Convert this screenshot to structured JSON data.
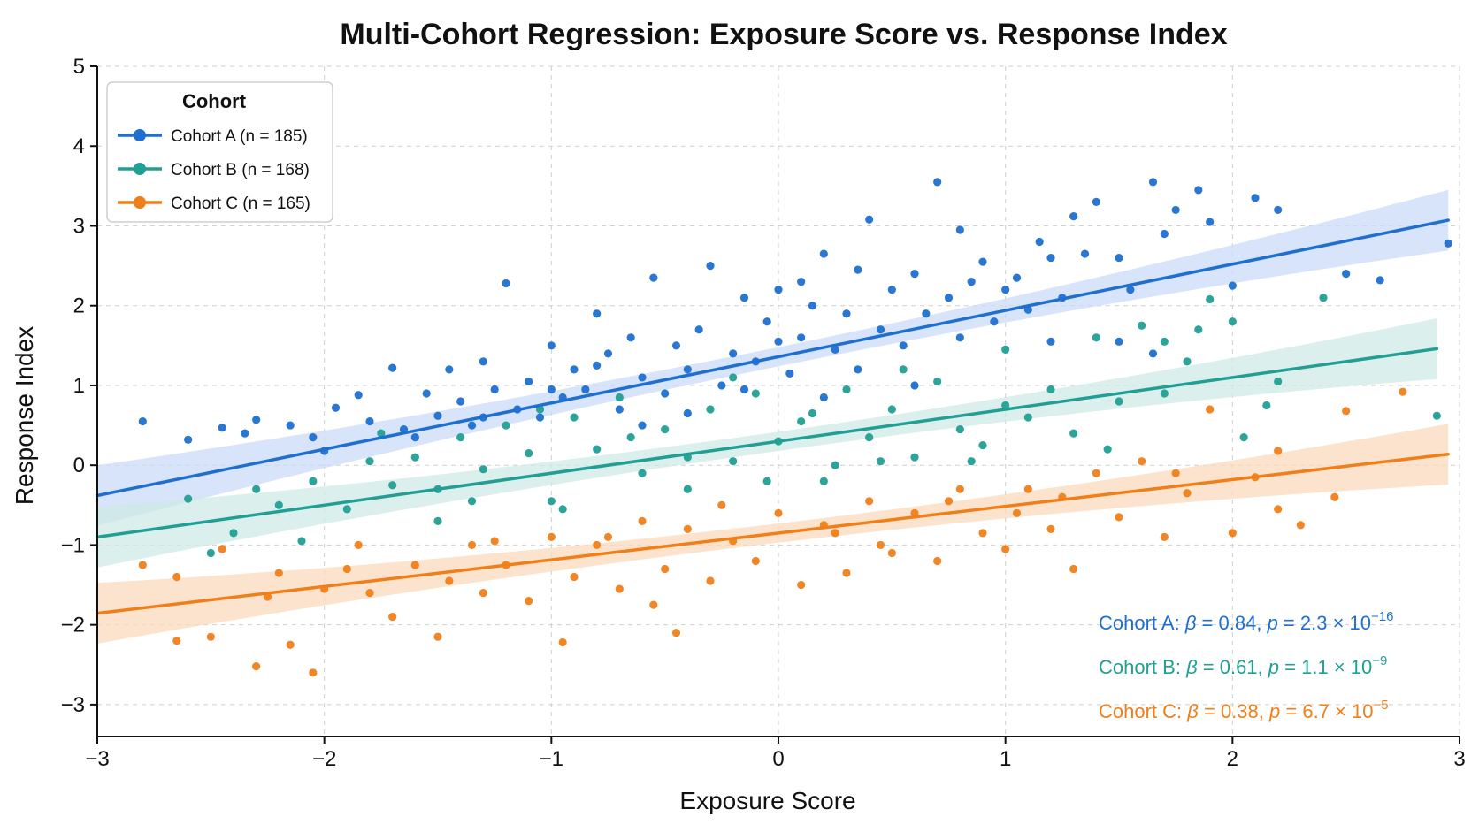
{
  "chart_data": {
    "type": "scatter",
    "title": "Multi-Cohort Regression: Exposure Score vs. Response Index",
    "xlabel": "Exposure Score",
    "ylabel": "Response Index",
    "xlim": [
      -3,
      3
    ],
    "ylim": [
      -3.4,
      5
    ],
    "xticks": [
      -3,
      -2,
      -1,
      0,
      1,
      2,
      3
    ],
    "yticks": [
      -3,
      -2,
      -1,
      0,
      1,
      2,
      3,
      4,
      5
    ],
    "xtick_labels": [
      "−3",
      "−2",
      "−1",
      "0",
      "1",
      "2",
      "3"
    ],
    "ytick_labels": [
      "−3",
      "−2",
      "−1",
      "0",
      "1",
      "2",
      "3",
      "4",
      "5"
    ],
    "grid": true,
    "legend": {
      "title": "Cohort",
      "placement": "top-left"
    },
    "series": [
      {
        "name": "Cohort A (n = 185)",
        "cohort": "Cohort A",
        "color": "#1f6fd1",
        "band_color": "#c9dbf7",
        "regression": {
          "intercept": 1.36,
          "slope": 0.58,
          "x_range": [
            -3.0,
            2.95
          ]
        },
        "stats": {
          "beta": "0.84",
          "p_mantissa": "2.3",
          "p_exp": "−16"
        },
        "points": [
          [
            -2.8,
            0.55
          ],
          [
            -2.6,
            0.32
          ],
          [
            -2.45,
            0.47
          ],
          [
            -2.3,
            0.57
          ],
          [
            -2.15,
            0.5
          ],
          [
            -2.05,
            0.35
          ],
          [
            -1.95,
            0.72
          ],
          [
            -1.85,
            0.88
          ],
          [
            -1.8,
            0.55
          ],
          [
            -1.7,
            1.22
          ],
          [
            -1.65,
            0.45
          ],
          [
            -1.55,
            0.9
          ],
          [
            -1.5,
            0.62
          ],
          [
            -1.45,
            1.2
          ],
          [
            -1.4,
            0.8
          ],
          [
            -1.35,
            0.5
          ],
          [
            -1.3,
            1.3
          ],
          [
            -1.25,
            0.95
          ],
          [
            -1.2,
            2.28
          ],
          [
            -1.15,
            0.7
          ],
          [
            -1.1,
            1.05
          ],
          [
            -1.05,
            0.6
          ],
          [
            -1.0,
            1.5
          ],
          [
            -0.95,
            0.85
          ],
          [
            -0.9,
            1.2
          ],
          [
            -0.85,
            0.95
          ],
          [
            -0.8,
            1.9
          ],
          [
            -0.75,
            1.4
          ],
          [
            -0.7,
            0.7
          ],
          [
            -0.65,
            1.6
          ],
          [
            -0.6,
            1.1
          ],
          [
            -0.55,
            2.35
          ],
          [
            -0.5,
            0.9
          ],
          [
            -0.45,
            1.5
          ],
          [
            -0.4,
            1.2
          ],
          [
            -0.35,
            1.7
          ],
          [
            -0.3,
            2.5
          ],
          [
            -0.25,
            1.0
          ],
          [
            -0.2,
            1.4
          ],
          [
            -0.15,
            2.1
          ],
          [
            -0.1,
            1.3
          ],
          [
            -0.05,
            1.8
          ],
          [
            0.0,
            2.2
          ],
          [
            0.05,
            1.15
          ],
          [
            0.1,
            1.6
          ],
          [
            0.15,
            2.0
          ],
          [
            0.2,
            2.65
          ],
          [
            0.25,
            1.45
          ],
          [
            0.3,
            1.9
          ],
          [
            0.35,
            1.2
          ],
          [
            0.4,
            3.08
          ],
          [
            0.45,
            1.7
          ],
          [
            0.5,
            2.2
          ],
          [
            0.55,
            1.5
          ],
          [
            0.6,
            2.4
          ],
          [
            0.65,
            1.9
          ],
          [
            0.7,
            3.55
          ],
          [
            0.75,
            2.1
          ],
          [
            0.8,
            1.6
          ],
          [
            0.85,
            2.3
          ],
          [
            0.9,
            2.55
          ],
          [
            0.95,
            1.8
          ],
          [
            1.0,
            2.2
          ],
          [
            1.05,
            2.35
          ],
          [
            1.1,
            1.95
          ],
          [
            1.15,
            2.8
          ],
          [
            1.2,
            2.6
          ],
          [
            1.25,
            2.1
          ],
          [
            1.3,
            3.12
          ],
          [
            1.35,
            2.65
          ],
          [
            1.4,
            3.3
          ],
          [
            1.5,
            2.6
          ],
          [
            1.55,
            2.2
          ],
          [
            1.65,
            3.55
          ],
          [
            1.7,
            2.9
          ],
          [
            1.75,
            3.2
          ],
          [
            1.85,
            3.45
          ],
          [
            1.9,
            3.05
          ],
          [
            2.0,
            2.25
          ],
          [
            2.1,
            3.35
          ],
          [
            2.2,
            3.2
          ],
          [
            2.5,
            2.4
          ],
          [
            2.65,
            2.32
          ],
          [
            2.95,
            2.78
          ],
          [
            -2.35,
            0.4
          ],
          [
            -2.0,
            0.18
          ],
          [
            -1.6,
            0.35
          ],
          [
            -1.0,
            0.95
          ],
          [
            -0.6,
            0.5
          ],
          [
            0.2,
            0.85
          ],
          [
            0.6,
            1.0
          ],
          [
            1.2,
            1.55
          ],
          [
            1.5,
            1.55
          ],
          [
            1.65,
            1.4
          ],
          [
            -0.4,
            0.65
          ],
          [
            0.1,
            2.3
          ],
          [
            -0.8,
            1.25
          ],
          [
            -0.15,
            0.95
          ],
          [
            0.35,
            2.45
          ],
          [
            0.8,
            2.95
          ],
          [
            -1.3,
            0.6
          ],
          [
            0.0,
            1.55
          ]
        ]
      },
      {
        "name": "Cohort B (n = 168)",
        "cohort": "Cohort B",
        "color": "#229f95",
        "band_color": "#cfe9e6",
        "regression": {
          "intercept": 0.3,
          "slope": 0.4,
          "x_range": [
            -3.0,
            2.9
          ]
        },
        "stats": {
          "beta": "0.61",
          "p_mantissa": "1.1",
          "p_exp": "−9"
        },
        "points": [
          [
            -2.6,
            -0.42
          ],
          [
            -2.4,
            -0.85
          ],
          [
            -2.2,
            -0.5
          ],
          [
            -2.05,
            -0.2
          ],
          [
            -1.9,
            -0.55
          ],
          [
            -1.8,
            0.05
          ],
          [
            -1.7,
            -0.25
          ],
          [
            -1.6,
            0.1
          ],
          [
            -1.5,
            -0.3
          ],
          [
            -1.4,
            0.35
          ],
          [
            -1.3,
            -0.05
          ],
          [
            -1.2,
            0.5
          ],
          [
            -1.1,
            0.15
          ],
          [
            -1.0,
            -0.45
          ],
          [
            -0.9,
            0.6
          ],
          [
            -0.8,
            0.2
          ],
          [
            -0.7,
            0.85
          ],
          [
            -0.6,
            -0.1
          ],
          [
            -0.5,
            0.45
          ],
          [
            -0.4,
            0.1
          ],
          [
            -0.3,
            0.7
          ],
          [
            -0.2,
            0.05
          ],
          [
            -0.1,
            0.9
          ],
          [
            0.0,
            0.3
          ],
          [
            0.1,
            0.55
          ],
          [
            0.2,
            -0.2
          ],
          [
            0.3,
            0.95
          ],
          [
            0.4,
            0.35
          ],
          [
            0.5,
            0.7
          ],
          [
            0.6,
            0.1
          ],
          [
            0.7,
            1.05
          ],
          [
            0.8,
            0.45
          ],
          [
            0.9,
            0.25
          ],
          [
            1.0,
            0.75
          ],
          [
            1.1,
            0.6
          ],
          [
            1.2,
            0.95
          ],
          [
            1.3,
            0.4
          ],
          [
            1.4,
            1.6
          ],
          [
            1.5,
            0.8
          ],
          [
            1.6,
            1.75
          ],
          [
            1.7,
            1.55
          ],
          [
            1.8,
            1.3
          ],
          [
            1.9,
            2.08
          ],
          [
            2.0,
            1.8
          ],
          [
            2.2,
            1.05
          ],
          [
            2.4,
            2.1
          ],
          [
            2.9,
            0.62
          ],
          [
            -2.5,
            -1.1
          ],
          [
            -2.1,
            -0.95
          ],
          [
            -1.5,
            -0.7
          ],
          [
            -0.95,
            -0.55
          ],
          [
            -0.4,
            -0.3
          ],
          [
            0.25,
            0.0
          ],
          [
            0.85,
            0.05
          ],
          [
            1.45,
            0.2
          ],
          [
            2.05,
            0.35
          ],
          [
            -1.75,
            0.4
          ],
          [
            -1.05,
            0.7
          ],
          [
            -0.2,
            1.1
          ],
          [
            0.55,
            1.2
          ],
          [
            1.0,
            1.45
          ],
          [
            1.7,
            0.9
          ],
          [
            -0.65,
            0.35
          ],
          [
            0.15,
            0.65
          ],
          [
            0.45,
            0.05
          ],
          [
            -0.05,
            -0.2
          ],
          [
            1.85,
            1.7
          ],
          [
            2.15,
            0.75
          ],
          [
            -2.3,
            -0.3
          ],
          [
            -1.35,
            -0.45
          ]
        ]
      },
      {
        "name": "Cohort C (n = 165)",
        "cohort": "Cohort C",
        "color": "#f07f1a",
        "band_color": "#fbd9bd",
        "regression": {
          "intercept": -0.85,
          "slope": 0.335,
          "x_range": [
            -3.0,
            2.95
          ]
        },
        "stats": {
          "beta": "0.38",
          "p_mantissa": "6.7",
          "p_exp": "−5"
        },
        "points": [
          [
            -2.8,
            -1.25
          ],
          [
            -2.65,
            -1.4
          ],
          [
            -2.65,
            -2.2
          ],
          [
            -2.5,
            -2.15
          ],
          [
            -2.45,
            -1.05
          ],
          [
            -2.3,
            -2.52
          ],
          [
            -2.2,
            -1.35
          ],
          [
            -2.15,
            -2.25
          ],
          [
            -2.05,
            -2.6
          ],
          [
            -2.0,
            -1.55
          ],
          [
            -1.9,
            -1.3
          ],
          [
            -1.8,
            -1.6
          ],
          [
            -1.7,
            -1.9
          ],
          [
            -1.6,
            -1.25
          ],
          [
            -1.5,
            -2.15
          ],
          [
            -1.45,
            -1.45
          ],
          [
            -1.35,
            -1.0
          ],
          [
            -1.3,
            -1.6
          ],
          [
            -1.2,
            -1.25
          ],
          [
            -1.1,
            -1.7
          ],
          [
            -1.0,
            -0.9
          ],
          [
            -0.95,
            -2.22
          ],
          [
            -0.9,
            -1.4
          ],
          [
            -0.8,
            -1.0
          ],
          [
            -0.7,
            -1.55
          ],
          [
            -0.6,
            -0.7
          ],
          [
            -0.5,
            -1.3
          ],
          [
            -0.45,
            -2.1
          ],
          [
            -0.4,
            -0.8
          ],
          [
            -0.3,
            -1.45
          ],
          [
            -0.2,
            -0.95
          ],
          [
            -0.1,
            -1.2
          ],
          [
            0.0,
            -0.6
          ],
          [
            0.1,
            -1.5
          ],
          [
            0.2,
            -0.75
          ],
          [
            0.3,
            -1.35
          ],
          [
            0.4,
            -0.45
          ],
          [
            0.5,
            -1.1
          ],
          [
            0.6,
            -0.6
          ],
          [
            0.7,
            -1.2
          ],
          [
            0.8,
            -0.3
          ],
          [
            0.9,
            -0.85
          ],
          [
            1.0,
            -1.05
          ],
          [
            1.1,
            -0.3
          ],
          [
            1.2,
            -0.8
          ],
          [
            1.3,
            -1.3
          ],
          [
            1.4,
            -0.1
          ],
          [
            1.5,
            -0.65
          ],
          [
            1.6,
            0.05
          ],
          [
            1.7,
            -0.9
          ],
          [
            1.8,
            -0.35
          ],
          [
            1.9,
            0.7
          ],
          [
            2.0,
            -0.85
          ],
          [
            2.1,
            -0.15
          ],
          [
            2.2,
            0.18
          ],
          [
            2.3,
            -0.75
          ],
          [
            2.45,
            -0.4
          ],
          [
            2.5,
            0.68
          ],
          [
            2.75,
            0.92
          ],
          [
            -1.25,
            -0.95
          ],
          [
            -0.75,
            -0.9
          ],
          [
            -0.25,
            -0.5
          ],
          [
            0.25,
            -0.85
          ],
          [
            0.75,
            -0.45
          ],
          [
            1.25,
            -0.4
          ],
          [
            1.75,
            -0.1
          ],
          [
            -1.85,
            -1.0
          ],
          [
            -0.55,
            -1.75
          ],
          [
            0.45,
            -1.0
          ],
          [
            1.05,
            -0.6
          ],
          [
            -2.25,
            -1.65
          ],
          [
            2.2,
            -0.55
          ]
        ]
      }
    ]
  }
}
